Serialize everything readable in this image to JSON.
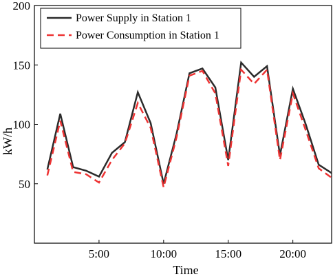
{
  "chart_data": {
    "type": "line",
    "xlabel": "Time",
    "ylabel": "kW/h",
    "xlim": [
      0,
      23
    ],
    "ylim": [
      0,
      200
    ],
    "xticks": [
      {
        "value": 5,
        "label": "5:00"
      },
      {
        "value": 10,
        "label": "10:00"
      },
      {
        "value": 15,
        "label": "15:00"
      },
      {
        "value": 20,
        "label": "20:00"
      }
    ],
    "yticks": [
      {
        "value": 50,
        "label": "50"
      },
      {
        "value": 100,
        "label": "100"
      },
      {
        "value": 150,
        "label": "150"
      },
      {
        "value": 200,
        "label": "200"
      }
    ],
    "legend_position": "top-left",
    "series": [
      {
        "name": "Power Supply in Station 1",
        "color": "#2b2b2b",
        "style": "solid",
        "x": [
          1,
          2,
          3,
          4,
          5,
          6,
          7,
          8,
          9,
          10,
          11,
          12,
          13,
          14,
          15,
          16,
          17,
          18,
          19,
          20,
          21,
          22,
          23
        ],
        "y": [
          62,
          109,
          64,
          61,
          56,
          76,
          85,
          127,
          101,
          50,
          92,
          143,
          147,
          131,
          70,
          152,
          140,
          149,
          74,
          130,
          100,
          66,
          59
        ]
      },
      {
        "name": "Power Consumption in Station 1",
        "color": "#ee3333",
        "style": "dashed",
        "x": [
          1,
          2,
          3,
          4,
          5,
          6,
          7,
          8,
          9,
          10,
          11,
          12,
          13,
          14,
          15,
          16,
          17,
          18,
          19,
          20,
          21,
          22,
          23
        ],
        "y": [
          57,
          103,
          60,
          58,
          51,
          70,
          84,
          118,
          97,
          47,
          89,
          141,
          145,
          126,
          65,
          146,
          134,
          146,
          70,
          126,
          95,
          63,
          55
        ]
      }
    ]
  }
}
